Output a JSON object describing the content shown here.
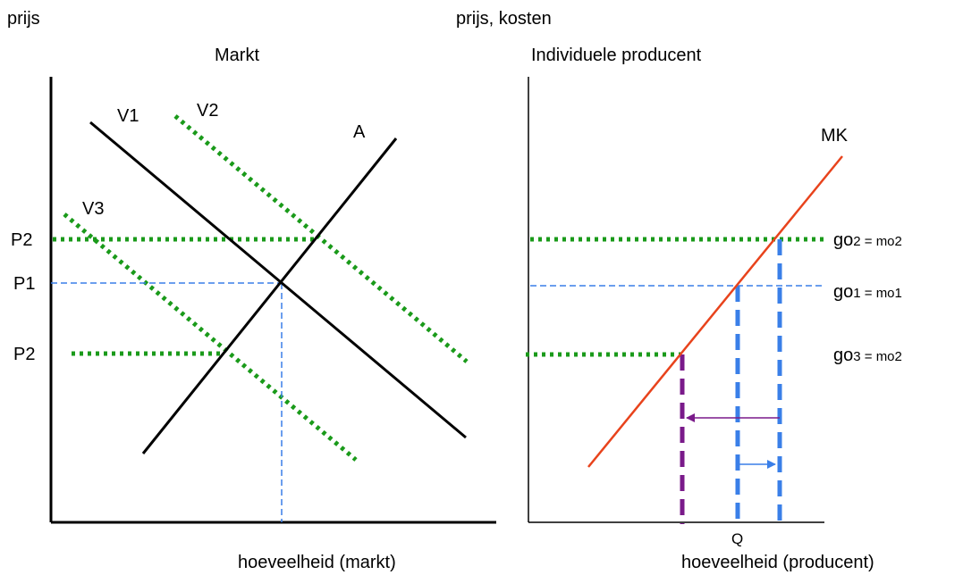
{
  "left_panel": {
    "y_axis_label": "prijs",
    "title": "Markt",
    "x_axis_label": "hoeveelheid (markt)",
    "curves": {
      "v1": "V1",
      "v2": "V2",
      "v3": "V3",
      "a": "A"
    },
    "price_levels": {
      "p2_top": "P2",
      "p1": "P1",
      "p2_bottom": "P2"
    }
  },
  "right_panel": {
    "y_axis_label": "prijs, kosten",
    "title": "Individuele producent",
    "x_axis_label": "hoeveelheid (producent)",
    "curve": "MK",
    "q_label": "Q",
    "levels": {
      "top": {
        "go": "go",
        "go_sub": "2",
        "eq": " = mo",
        "mo_sub": "2"
      },
      "middle": {
        "go": "go",
        "go_sub": "1",
        "eq": " = mo",
        "mo_sub": "1"
      },
      "bottom": {
        "go": "go",
        "go_sub": "3",
        "eq": " = mo",
        "mo_sub": "2"
      }
    }
  },
  "colors": {
    "axis": "#000000",
    "green_dotted": "#1a9a1a",
    "blue_dashed": "#3a7fe8",
    "red_curve": "#e8431c",
    "purple": "#7a1a8a"
  }
}
